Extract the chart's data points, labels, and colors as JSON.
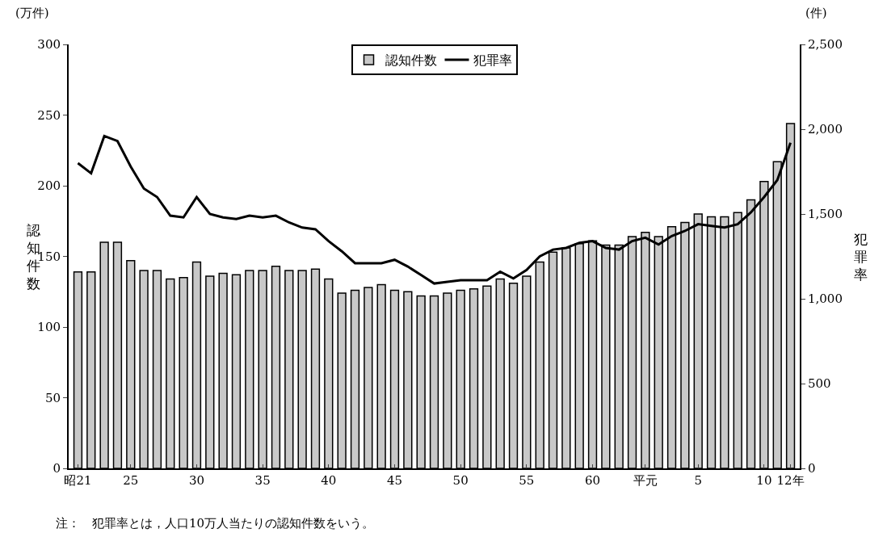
{
  "chart_data": {
    "type": "bar",
    "categories": [
      "昭21",
      null,
      null,
      null,
      "25",
      null,
      null,
      null,
      null,
      "30",
      null,
      null,
      null,
      null,
      "35",
      null,
      null,
      null,
      null,
      "40",
      null,
      null,
      null,
      null,
      "45",
      null,
      null,
      null,
      null,
      "50",
      null,
      null,
      null,
      null,
      "55",
      null,
      null,
      null,
      null,
      "60",
      null,
      null,
      null,
      "平元",
      null,
      null,
      null,
      "5",
      null,
      null,
      null,
      null,
      "10",
      null,
      "12年"
    ],
    "series": [
      {
        "name": "認知件数",
        "color": "#c8c8c8",
        "values": [
          139,
          139,
          160,
          160,
          147,
          140,
          140,
          134,
          135,
          146,
          136,
          138,
          137,
          140,
          140,
          143,
          140,
          140,
          141,
          134,
          124,
          126,
          128,
          130,
          126,
          125,
          122,
          122,
          124,
          126,
          127,
          129,
          134,
          131,
          136,
          146,
          153,
          156,
          159,
          161,
          158,
          158,
          164,
          167,
          164,
          171,
          174,
          180,
          178,
          178,
          181,
          190,
          203,
          217,
          244
        ]
      },
      {
        "name": "犯罪率",
        "type": "line",
        "axis": "y2",
        "color": "#000000",
        "values": [
          1800,
          1740,
          1960,
          1930,
          1780,
          1650,
          1600,
          1490,
          1480,
          1600,
          1500,
          1480,
          1470,
          1490,
          1480,
          1490,
          1450,
          1420,
          1410,
          1340,
          1280,
          1210,
          1210,
          1210,
          1230,
          1190,
          1140,
          1090,
          1100,
          1110,
          1110,
          1110,
          1160,
          1120,
          1170,
          1250,
          1290,
          1300,
          1330,
          1340,
          1300,
          1290,
          1340,
          1360,
          1320,
          1370,
          1400,
          1440,
          1430,
          1420,
          1440,
          1510,
          1600,
          1700,
          1920
        ]
      }
    ],
    "ylabel": "認知件数",
    "y2label": "犯罪率",
    "ylim": [
      0,
      300
    ],
    "yticks": [
      0,
      50,
      100,
      150,
      200,
      250,
      300
    ],
    "y2lim": [
      0,
      2500
    ],
    "y2ticks": [
      0,
      500,
      {
        "value": 1000,
        "label": "1,000"
      },
      {
        "value": 1500,
        "label": "1,500"
      },
      {
        "value": 2000,
        "label": "2,000"
      },
      {
        "value": 2500,
        "label": "2,500"
      }
    ],
    "annotations": [
      "(万件)",
      "(件)",
      "注：　犯罪率とは，人口10万人当たりの認知件数をいう。"
    ],
    "legend": "top"
  }
}
